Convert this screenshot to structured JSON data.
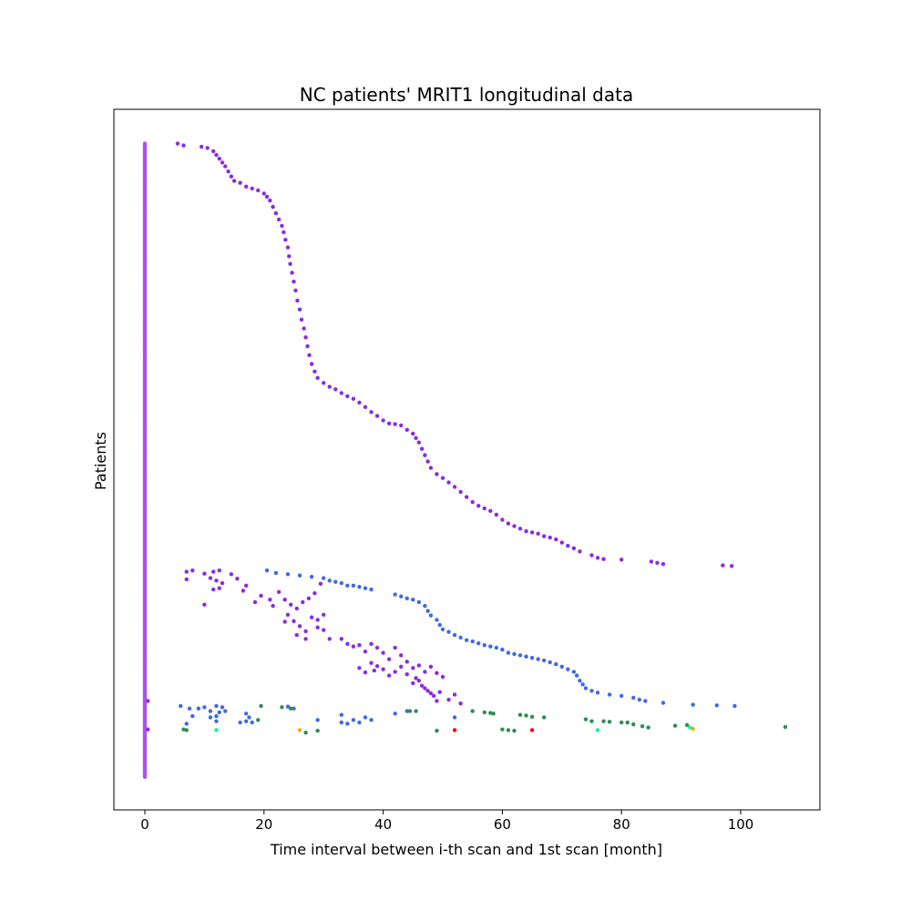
{
  "chart_data": {
    "type": "scatter",
    "title": "NC patients' MRIT1 longitudinal data",
    "xlabel": "Time interval between i-th scan and 1st scan [month]",
    "ylabel": "Patients",
    "xlim": [
      -5.2,
      113.3
    ],
    "ylim": [
      -52,
      1054
    ],
    "x_ticks": [
      0,
      20,
      40,
      60,
      80,
      100
    ],
    "y_ticks": [],
    "grid": false,
    "legend": "none",
    "colors": {
      "baseline": "#b04ff0",
      "scan2": "#8a2be2",
      "scan3": "#8a2be2",
      "scan4": "#4169e1",
      "scan5": "#2e8b57",
      "scan6": "#00fa9a",
      "scan7": "#ff0000",
      "scan8": "#ffa500"
    },
    "series": [
      {
        "color_key": "baseline",
        "segments": [
          {
            "x": 0,
            "y_from": 0,
            "y_to": 1000
          }
        ]
      },
      {
        "color_key": "scan2",
        "points": [
          [
            5.5,
            1000
          ],
          [
            6.5,
            997
          ],
          [
            9.5,
            995
          ],
          [
            10.5,
            993
          ],
          [
            11.5,
            988
          ],
          [
            12,
            982
          ],
          [
            12.5,
            976
          ],
          [
            13,
            970
          ],
          [
            13.5,
            964
          ],
          [
            14,
            956
          ],
          [
            14.5,
            948
          ],
          [
            15,
            941
          ],
          [
            16,
            938
          ],
          [
            17,
            932
          ],
          [
            18,
            929
          ],
          [
            19,
            926
          ],
          [
            20,
            921
          ],
          [
            20.5,
            916
          ],
          [
            21,
            910
          ],
          [
            21.5,
            900
          ],
          [
            22,
            890
          ],
          [
            22.5,
            880
          ],
          [
            23,
            870
          ],
          [
            23.3,
            860
          ],
          [
            23.6,
            848
          ],
          [
            24,
            836
          ],
          [
            24.2,
            822
          ],
          [
            24.4,
            810
          ],
          [
            24.7,
            796
          ],
          [
            25,
            782
          ],
          [
            25.3,
            768
          ],
          [
            25.6,
            752
          ],
          [
            26,
            738
          ],
          [
            26.3,
            722
          ],
          [
            26.7,
            708
          ],
          [
            27,
            694
          ],
          [
            27.3,
            680
          ],
          [
            27.6,
            666
          ],
          [
            28,
            652
          ],
          [
            28.5,
            640
          ],
          [
            29,
            630
          ],
          [
            30,
            622
          ],
          [
            31,
            616
          ],
          [
            32,
            612
          ],
          [
            33,
            606
          ],
          [
            34,
            601
          ],
          [
            35,
            597
          ],
          [
            36,
            591
          ],
          [
            37,
            584
          ],
          [
            38,
            576
          ],
          [
            39,
            570
          ],
          [
            40,
            563
          ],
          [
            41,
            558
          ],
          [
            42,
            557
          ],
          [
            43,
            555
          ],
          [
            44,
            548
          ],
          [
            45,
            542
          ],
          [
            45.5,
            535
          ],
          [
            46,
            528
          ],
          [
            46.5,
            518
          ],
          [
            47,
            508
          ],
          [
            47.5,
            498
          ],
          [
            48,
            488
          ],
          [
            49,
            478
          ],
          [
            50,
            472
          ],
          [
            51,
            465
          ],
          [
            52,
            458
          ],
          [
            53,
            450
          ],
          [
            54,
            442
          ],
          [
            55,
            434
          ],
          [
            56,
            428
          ],
          [
            57,
            424
          ],
          [
            58,
            420
          ],
          [
            59,
            414
          ],
          [
            60,
            406
          ],
          [
            61,
            400
          ],
          [
            62,
            396
          ],
          [
            63,
            392
          ],
          [
            64,
            388
          ],
          [
            65,
            386
          ],
          [
            66,
            384
          ],
          [
            67,
            380
          ],
          [
            68,
            378
          ],
          [
            69,
            375
          ],
          [
            70,
            370
          ],
          [
            71,
            365
          ],
          [
            72,
            361
          ],
          [
            73,
            356
          ],
          [
            75,
            350
          ],
          [
            76,
            346
          ],
          [
            77,
            344
          ],
          [
            80,
            343
          ],
          [
            85,
            340
          ],
          [
            86,
            338
          ],
          [
            87,
            336
          ],
          [
            97,
            334
          ],
          [
            98.5,
            333
          ]
        ]
      },
      {
        "color_key": "scan3",
        "points": [
          [
            7,
            324
          ],
          [
            8,
            326
          ],
          [
            10,
            321
          ],
          [
            11.5,
            324
          ],
          [
            12.5,
            326
          ],
          [
            7,
            312
          ],
          [
            11,
            314
          ],
          [
            12,
            310
          ],
          [
            13,
            306
          ],
          [
            11.5,
            296
          ],
          [
            12.5,
            298
          ],
          [
            14.5,
            320
          ],
          [
            15.5,
            313
          ],
          [
            17,
            302
          ],
          [
            16.5,
            294
          ],
          [
            10,
            272
          ],
          [
            18.5,
            276
          ],
          [
            19.5,
            286
          ],
          [
            21,
            280
          ],
          [
            21.5,
            270
          ],
          [
            22.5,
            292
          ],
          [
            23.5,
            280
          ],
          [
            24.5,
            272
          ],
          [
            25.5,
            266
          ],
          [
            26.5,
            276
          ],
          [
            27.5,
            282
          ],
          [
            28.5,
            290
          ],
          [
            29.5,
            305
          ],
          [
            24,
            256
          ],
          [
            25,
            246
          ],
          [
            26,
            238
          ],
          [
            27,
            230
          ],
          [
            28,
            252
          ],
          [
            29,
            248
          ],
          [
            30,
            256
          ],
          [
            23.5,
            245
          ],
          [
            25.5,
            224
          ],
          [
            27,
            218
          ],
          [
            29,
            236
          ],
          [
            30,
            232
          ],
          [
            31,
            218
          ],
          [
            33,
            218
          ],
          [
            34,
            210
          ],
          [
            35,
            206
          ],
          [
            36,
            208
          ],
          [
            37,
            198
          ],
          [
            38,
            210
          ],
          [
            39,
            204
          ],
          [
            40,
            196
          ],
          [
            41,
            186
          ],
          [
            42,
            204
          ],
          [
            43,
            192
          ],
          [
            44,
            182
          ],
          [
            45,
            172
          ],
          [
            46,
            176
          ],
          [
            47,
            166
          ],
          [
            48,
            174
          ],
          [
            49,
            164
          ],
          [
            50,
            158
          ],
          [
            45.5,
            156
          ],
          [
            46.5,
            144
          ],
          [
            47.5,
            136
          ],
          [
            48.5,
            128
          ],
          [
            49.5,
            134
          ],
          [
            51,
            122
          ],
          [
            52,
            130
          ],
          [
            36,
            172
          ],
          [
            37,
            165
          ],
          [
            38,
            180
          ],
          [
            39,
            175
          ],
          [
            38.5,
            168
          ],
          [
            40,
            170
          ],
          [
            41,
            160
          ],
          [
            42,
            166
          ],
          [
            43,
            174
          ],
          [
            44,
            162
          ],
          [
            45,
            148
          ],
          [
            46,
            152
          ],
          [
            47,
            140
          ],
          [
            48,
            132
          ],
          [
            49,
            120
          ],
          [
            53,
            116
          ]
        ]
      },
      {
        "color_key": "scan4",
        "points": [
          [
            20.5,
            326
          ],
          [
            22,
            322
          ],
          [
            24,
            320
          ],
          [
            26,
            318
          ],
          [
            28,
            316
          ],
          [
            30,
            314
          ],
          [
            31,
            310
          ],
          [
            32,
            308
          ],
          [
            33,
            306
          ],
          [
            34,
            302
          ],
          [
            35,
            302
          ],
          [
            36,
            300
          ],
          [
            37,
            298
          ],
          [
            38,
            296
          ],
          [
            42,
            288
          ],
          [
            43,
            285
          ],
          [
            44,
            282
          ],
          [
            45,
            280
          ],
          [
            46,
            276
          ],
          [
            47,
            270
          ],
          [
            47.5,
            262
          ],
          [
            48,
            255
          ],
          [
            49,
            248
          ],
          [
            49.5,
            240
          ],
          [
            50,
            233
          ],
          [
            51,
            229
          ],
          [
            52,
            224
          ],
          [
            53,
            220
          ],
          [
            54,
            216
          ],
          [
            55,
            214
          ],
          [
            56,
            211
          ],
          [
            57,
            208
          ],
          [
            58,
            206
          ],
          [
            59,
            204
          ],
          [
            60,
            201
          ],
          [
            61,
            196
          ],
          [
            62,
            194
          ],
          [
            63,
            192
          ],
          [
            64,
            190
          ],
          [
            65,
            188
          ],
          [
            66,
            186
          ],
          [
            67,
            184
          ],
          [
            68,
            181
          ],
          [
            69,
            178
          ],
          [
            70,
            174
          ],
          [
            71,
            170
          ],
          [
            72,
            166
          ],
          [
            72.5,
            160
          ],
          [
            73,
            152
          ],
          [
            73.5,
            146
          ],
          [
            74,
            140
          ],
          [
            75,
            136
          ],
          [
            76,
            133
          ],
          [
            78,
            130
          ],
          [
            80,
            128
          ],
          [
            82,
            125
          ],
          [
            83,
            122
          ],
          [
            84,
            120
          ],
          [
            87,
            117
          ],
          [
            92,
            114
          ],
          [
            96,
            113
          ],
          [
            99,
            112
          ],
          [
            6,
            112
          ],
          [
            7.5,
            108
          ],
          [
            9,
            108
          ],
          [
            10,
            110
          ],
          [
            11,
            104
          ],
          [
            12,
            112
          ],
          [
            13,
            110
          ],
          [
            12.5,
            102
          ],
          [
            12,
            96
          ],
          [
            13.5,
            104
          ],
          [
            17,
            100
          ],
          [
            17.5,
            94
          ],
          [
            8,
            96
          ],
          [
            11,
            94
          ],
          [
            18,
            86
          ],
          [
            24,
            111
          ],
          [
            25,
            108
          ],
          [
            29,
            90
          ],
          [
            33,
            98
          ],
          [
            35,
            90
          ],
          [
            36,
            86
          ],
          [
            37,
            94
          ],
          [
            38,
            90
          ],
          [
            42,
            100
          ],
          [
            44,
            104
          ],
          [
            52,
            94
          ],
          [
            7,
            84
          ],
          [
            12,
            88
          ],
          [
            16,
            86
          ],
          [
            17,
            88
          ],
          [
            33,
            86
          ],
          [
            34,
            84
          ]
        ]
      },
      {
        "color_key": "scan5",
        "points": [
          [
            19.5,
            112
          ],
          [
            23,
            110
          ],
          [
            24.5,
            108
          ],
          [
            44.5,
            104
          ],
          [
            45.5,
            104
          ],
          [
            55,
            104
          ],
          [
            57,
            102
          ],
          [
            58,
            101
          ],
          [
            58.5,
            100
          ],
          [
            63,
            98
          ],
          [
            64,
            97
          ],
          [
            65,
            95
          ],
          [
            67,
            94
          ],
          [
            74,
            91
          ],
          [
            75,
            88
          ],
          [
            77,
            88
          ],
          [
            78,
            87
          ],
          [
            80,
            86
          ],
          [
            81,
            86
          ],
          [
            82,
            83
          ],
          [
            83.5,
            80
          ],
          [
            84.5,
            78
          ],
          [
            89,
            81
          ],
          [
            91,
            82
          ],
          [
            107.5,
            79
          ],
          [
            6.5,
            75
          ],
          [
            7,
            74
          ],
          [
            19,
            90
          ],
          [
            27,
            70
          ],
          [
            29,
            73
          ],
          [
            49,
            73
          ],
          [
            60,
            75
          ],
          [
            61,
            74
          ],
          [
            62,
            73
          ]
        ]
      },
      {
        "color_key": "scan6",
        "points": [
          [
            12,
            74
          ],
          [
            76,
            74
          ],
          [
            91.5,
            78
          ]
        ]
      },
      {
        "color_key": "scan7",
        "points": [
          [
            52,
            74
          ],
          [
            65,
            74
          ]
        ]
      },
      {
        "color_key": "scan8",
        "points": [
          [
            26,
            74
          ],
          [
            92,
            76
          ]
        ]
      },
      {
        "color_key": "scan2",
        "points": [
          [
            0.5,
            75
          ],
          [
            0.5,
            120
          ]
        ]
      }
    ]
  }
}
